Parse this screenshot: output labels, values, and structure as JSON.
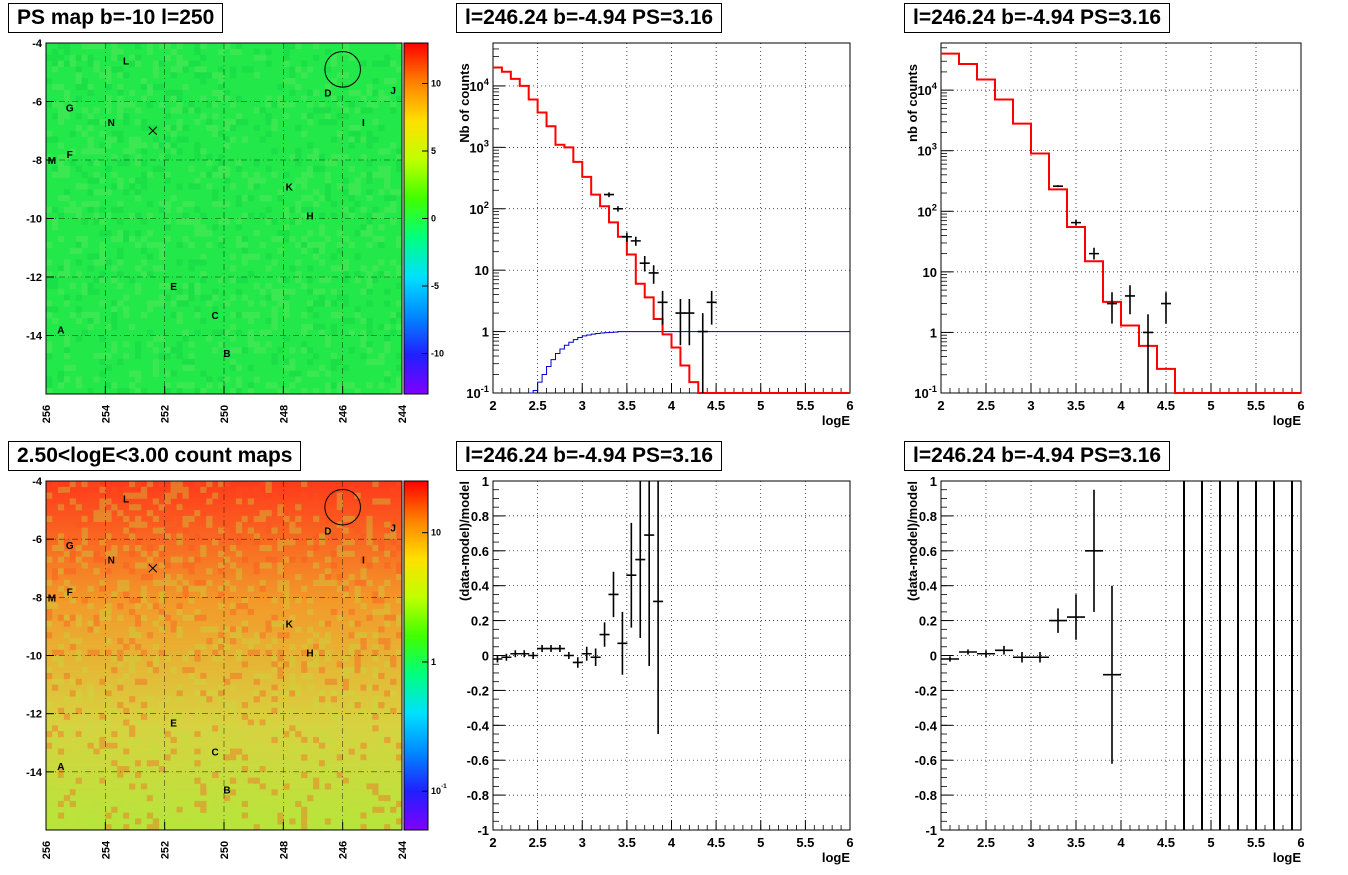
{
  "panels": {
    "map_ps_title": "PS map b=-10 l=250",
    "map_count_title": "2.50<logE<3.00 count maps",
    "spec_lin_title": "l=246.24 b=-4.94 PS=3.16",
    "spec_bin_title": "l=246.24 b=-4.94 PS=3.16",
    "resid_lin_title": "l=246.24 b=-4.94 PS=3.16",
    "resid_bin_title": "l=246.24 b=-4.94 PS=3.16"
  },
  "colors": {
    "data": "#000000",
    "model": "#ff0000",
    "exposure": "#0000cc",
    "ps_map_bg": "#22e84a",
    "count_map_top": "#ff3a1a",
    "count_map_bottom": "#b6e63a"
  },
  "chart_data": [
    {
      "id": "ps_map",
      "type": "heatmap",
      "title": "PS map b=-10 l=250",
      "xlabel": "",
      "ylabel": "",
      "xlim": [
        256,
        244
      ],
      "ylim": [
        -16,
        -4
      ],
      "xticks": [
        "256",
        "254",
        "252",
        "250",
        "248",
        "246",
        "244"
      ],
      "yticks": [
        "-4",
        "-6",
        "-8",
        "-10",
        "-12",
        "-14"
      ],
      "colorbar_ticks": [
        "10",
        "5",
        "0",
        "-5",
        "-10"
      ],
      "colorbar_range": [
        -13,
        13
      ],
      "sources": [
        {
          "label": "L",
          "l": 253.3,
          "b": -4.6
        },
        {
          "label": "D",
          "l": 246.5,
          "b": -5.7
        },
        {
          "label": "J",
          "l": 244.3,
          "b": -5.6
        },
        {
          "label": "G",
          "l": 255.2,
          "b": -6.2
        },
        {
          "label": "N",
          "l": 253.8,
          "b": -6.7
        },
        {
          "label": "I",
          "l": 245.3,
          "b": -6.7
        },
        {
          "label": "M",
          "l": 255.8,
          "b": -8.0
        },
        {
          "label": "F",
          "l": 255.2,
          "b": -7.8
        },
        {
          "label": "K",
          "l": 247.8,
          "b": -8.9
        },
        {
          "label": "H",
          "l": 247.1,
          "b": -9.9
        },
        {
          "label": "E",
          "l": 251.7,
          "b": -12.3
        },
        {
          "label": "C",
          "l": 250.3,
          "b": -13.3
        },
        {
          "label": "A",
          "l": 255.5,
          "b": -13.8
        },
        {
          "label": "B",
          "l": 249.9,
          "b": -14.6
        }
      ],
      "circle": {
        "l": 246.0,
        "b": -4.9,
        "r": 0.6
      },
      "cross": {
        "l": 252.4,
        "b": -7.0
      }
    },
    {
      "id": "count_map",
      "type": "heatmap",
      "title": "2.50<logE<3.00 count maps",
      "xlabel": "",
      "ylabel": "",
      "xlim": [
        256,
        244
      ],
      "ylim": [
        -16,
        -4
      ],
      "xticks": [
        "256",
        "254",
        "252",
        "250",
        "248",
        "246",
        "244"
      ],
      "yticks": [
        "-4",
        "-6",
        "-8",
        "-10",
        "-12",
        "-14"
      ],
      "colorbar_ticks": [
        "10",
        "1",
        "10^-1"
      ],
      "colorbar_range_log": [
        -1.3,
        1.4
      ],
      "sources": [
        {
          "label": "L",
          "l": 253.3,
          "b": -4.6
        },
        {
          "label": "D",
          "l": 246.5,
          "b": -5.7
        },
        {
          "label": "J",
          "l": 244.3,
          "b": -5.6
        },
        {
          "label": "G",
          "l": 255.2,
          "b": -6.2
        },
        {
          "label": "N",
          "l": 253.8,
          "b": -6.7
        },
        {
          "label": "I",
          "l": 245.3,
          "b": -6.7
        },
        {
          "label": "M",
          "l": 255.8,
          "b": -8.0
        },
        {
          "label": "F",
          "l": 255.2,
          "b": -7.8
        },
        {
          "label": "K",
          "l": 247.8,
          "b": -8.9
        },
        {
          "label": "H",
          "l": 247.1,
          "b": -9.9
        },
        {
          "label": "E",
          "l": 251.7,
          "b": -12.3
        },
        {
          "label": "C",
          "l": 250.3,
          "b": -13.3
        },
        {
          "label": "A",
          "l": 255.5,
          "b": -13.8
        },
        {
          "label": "B",
          "l": 249.9,
          "b": -14.6
        }
      ],
      "circle": {
        "l": 246.0,
        "b": -4.9,
        "r": 0.6
      },
      "cross": {
        "l": 252.4,
        "b": -7.0
      }
    },
    {
      "id": "spec_lin",
      "type": "line",
      "title": "l=246.24 b=-4.94 PS=3.16",
      "xlabel": "logE",
      "ylabel": "Nb of counts",
      "xlim": [
        2,
        6
      ],
      "ylim_log": [
        0.1,
        50000
      ],
      "xticks": [
        "2",
        "2.5",
        "3",
        "3.5",
        "4",
        "4.5",
        "5",
        "5.5",
        "6"
      ],
      "yticks": [
        "10^-1",
        "1",
        "10",
        "10^2",
        "10^3",
        "10^4"
      ],
      "model_step": {
        "edges": [
          2,
          2.1,
          2.2,
          2.3,
          2.4,
          2.5,
          2.6,
          2.7,
          2.8,
          2.9,
          3.0,
          3.1,
          3.2,
          3.3,
          3.4,
          3.5,
          3.6,
          3.7,
          3.8,
          3.9,
          4.0,
          4.1,
          4.2,
          4.3,
          4.4,
          6.0
        ],
        "values": [
          20000,
          17000,
          13000,
          10000,
          6000,
          3700,
          2200,
          1100,
          1000,
          580,
          330,
          170,
          110,
          60,
          35,
          18,
          6,
          3.6,
          1.6,
          0.9,
          0.55,
          0.28,
          0.15,
          0.1,
          0.1
        ]
      },
      "exposure_step": {
        "edges": [
          2.4,
          2.45,
          2.5,
          2.55,
          2.6,
          2.65,
          2.7,
          2.75,
          2.8,
          2.85,
          2.9,
          2.95,
          3.0,
          3.05,
          3.1,
          3.15,
          3.2,
          3.25,
          3.3,
          3.35,
          3.4,
          3.5,
          4.5,
          6.0
        ],
        "values": [
          0.1,
          0.11,
          0.15,
          0.2,
          0.27,
          0.35,
          0.44,
          0.52,
          0.6,
          0.67,
          0.74,
          0.8,
          0.85,
          0.88,
          0.91,
          0.93,
          0.95,
          0.96,
          0.97,
          0.98,
          1.0,
          1.0,
          1.0
        ]
      },
      "points": [
        {
          "x": 3.3,
          "y": 170,
          "lo": 155,
          "hi": 185
        },
        {
          "x": 3.4,
          "y": 100,
          "lo": 90,
          "hi": 110
        },
        {
          "x": 3.5,
          "y": 35,
          "lo": 29,
          "hi": 41
        },
        {
          "x": 3.6,
          "y": 30,
          "lo": 25,
          "hi": 35
        },
        {
          "x": 3.7,
          "y": 13,
          "lo": 9.5,
          "hi": 17
        },
        {
          "x": 3.8,
          "y": 9,
          "lo": 6,
          "hi": 12
        },
        {
          "x": 3.9,
          "y": 3,
          "lo": 1.3,
          "hi": 4.6
        },
        {
          "x": 4.1,
          "y": 2,
          "lo": 0.6,
          "hi": 3.4
        },
        {
          "x": 4.2,
          "y": 2,
          "lo": 0.6,
          "hi": 3.4
        },
        {
          "x": 4.35,
          "y": 1,
          "lo": 0.1,
          "hi": 2
        },
        {
          "x": 4.45,
          "y": 3,
          "lo": 1.3,
          "hi": 4.6
        }
      ]
    },
    {
      "id": "spec_bin",
      "type": "line",
      "title": "l=246.24 b=-4.94 PS=3.16",
      "xlabel": "logE",
      "ylabel": "nb of counts",
      "xlim": [
        2,
        6
      ],
      "ylim_log": [
        0.1,
        60000
      ],
      "xticks": [
        "2",
        "2.5",
        "3",
        "3.5",
        "4",
        "4.5",
        "5",
        "5.5",
        "6"
      ],
      "yticks": [
        "10^-1",
        "1",
        "10",
        "10^2",
        "10^3",
        "10^4"
      ],
      "model_step": {
        "edges": [
          2,
          2.2,
          2.4,
          2.6,
          2.8,
          3.0,
          3.2,
          3.4,
          3.6,
          3.8,
          4.0,
          4.2,
          4.4,
          4.6,
          6.0
        ],
        "values": [
          40000,
          27000,
          15000,
          7000,
          2800,
          900,
          230,
          55,
          15,
          3.2,
          1.3,
          0.6,
          0.25,
          0.1
        ]
      },
      "points": [
        {
          "x": 3.3,
          "y": 260,
          "lo": 250,
          "hi": 270
        },
        {
          "x": 3.5,
          "y": 65,
          "lo": 58,
          "hi": 72
        },
        {
          "x": 3.7,
          "y": 20,
          "lo": 16,
          "hi": 25
        },
        {
          "x": 3.9,
          "y": 3,
          "lo": 1.4,
          "hi": 4.6
        },
        {
          "x": 4.1,
          "y": 4,
          "lo": 2,
          "hi": 6
        },
        {
          "x": 4.3,
          "y": 1,
          "lo": 0.1,
          "hi": 2
        },
        {
          "x": 4.5,
          "y": 3,
          "lo": 1.4,
          "hi": 4.6
        }
      ]
    },
    {
      "id": "resid_lin",
      "type": "scatter",
      "title": "l=246.24 b=-4.94 PS=3.16",
      "xlabel": "logE",
      "ylabel": "(data-model)/model",
      "xlim": [
        2,
        6
      ],
      "ylim": [
        -1,
        1
      ],
      "xticks": [
        "2",
        "2.5",
        "3",
        "3.5",
        "4",
        "4.5",
        "5",
        "5.5",
        "6"
      ],
      "yticks": [
        "-1",
        "-0.8",
        "-0.6",
        "-0.4",
        "-0.2",
        "0",
        "0.2",
        "0.4",
        "0.6",
        "0.8",
        "1"
      ],
      "points": [
        {
          "x": 2.05,
          "y": -0.02,
          "e": 0.02
        },
        {
          "x": 2.15,
          "y": -0.01,
          "e": 0.02
        },
        {
          "x": 2.25,
          "y": 0.01,
          "e": 0.02
        },
        {
          "x": 2.35,
          "y": 0.01,
          "e": 0.02
        },
        {
          "x": 2.45,
          "y": 0.0,
          "e": 0.02
        },
        {
          "x": 2.55,
          "y": 0.04,
          "e": 0.02
        },
        {
          "x": 2.65,
          "y": 0.04,
          "e": 0.02
        },
        {
          "x": 2.75,
          "y": 0.04,
          "e": 0.02
        },
        {
          "x": 2.85,
          "y": 0.0,
          "e": 0.02
        },
        {
          "x": 2.95,
          "y": -0.04,
          "e": 0.03
        },
        {
          "x": 3.05,
          "y": 0.01,
          "e": 0.04
        },
        {
          "x": 3.15,
          "y": -0.01,
          "e": 0.05
        },
        {
          "x": 3.25,
          "y": 0.12,
          "e": 0.07
        },
        {
          "x": 3.35,
          "y": 0.35,
          "e": 0.13
        },
        {
          "x": 3.45,
          "y": 0.07,
          "e": 0.18
        },
        {
          "x": 3.55,
          "y": 0.46,
          "e": 0.3
        },
        {
          "x": 3.65,
          "y": 0.55,
          "e": 0.45
        },
        {
          "x": 3.75,
          "y": 0.69,
          "e": 0.75
        },
        {
          "x": 3.85,
          "y": 0.31,
          "e": 0.76
        }
      ]
    },
    {
      "id": "resid_bin",
      "type": "scatter",
      "title": "l=246.24 b=-4.94 PS=3.16",
      "xlabel": "logE",
      "ylabel": "(data-model)/model",
      "xlim": [
        2,
        6
      ],
      "ylim": [
        -1,
        1
      ],
      "xticks": [
        "2",
        "2.5",
        "3",
        "3.5",
        "4",
        "4.5",
        "5",
        "5.5",
        "6"
      ],
      "yticks": [
        "-1",
        "-0.8",
        "-0.6",
        "-0.4",
        "-0.2",
        "0",
        "0.2",
        "0.4",
        "0.6",
        "0.8",
        "1"
      ],
      "points": [
        {
          "x": 2.1,
          "y": -0.02,
          "e": 0.015
        },
        {
          "x": 2.3,
          "y": 0.02,
          "e": 0.015
        },
        {
          "x": 2.5,
          "y": 0.01,
          "e": 0.02
        },
        {
          "x": 2.7,
          "y": 0.03,
          "e": 0.025
        },
        {
          "x": 2.9,
          "y": -0.01,
          "e": 0.03
        },
        {
          "x": 3.1,
          "y": -0.01,
          "e": 0.03
        },
        {
          "x": 3.3,
          "y": 0.2,
          "e": 0.07
        },
        {
          "x": 3.5,
          "y": 0.22,
          "e": 0.13
        },
        {
          "x": 3.7,
          "y": 0.6,
          "e": 0.35
        },
        {
          "x": 3.9,
          "y": -0.11,
          "e": 0.51
        }
      ],
      "vertical_lines_x": [
        4.7,
        4.9,
        5.1,
        5.3,
        5.5,
        5.7,
        5.9
      ]
    }
  ]
}
